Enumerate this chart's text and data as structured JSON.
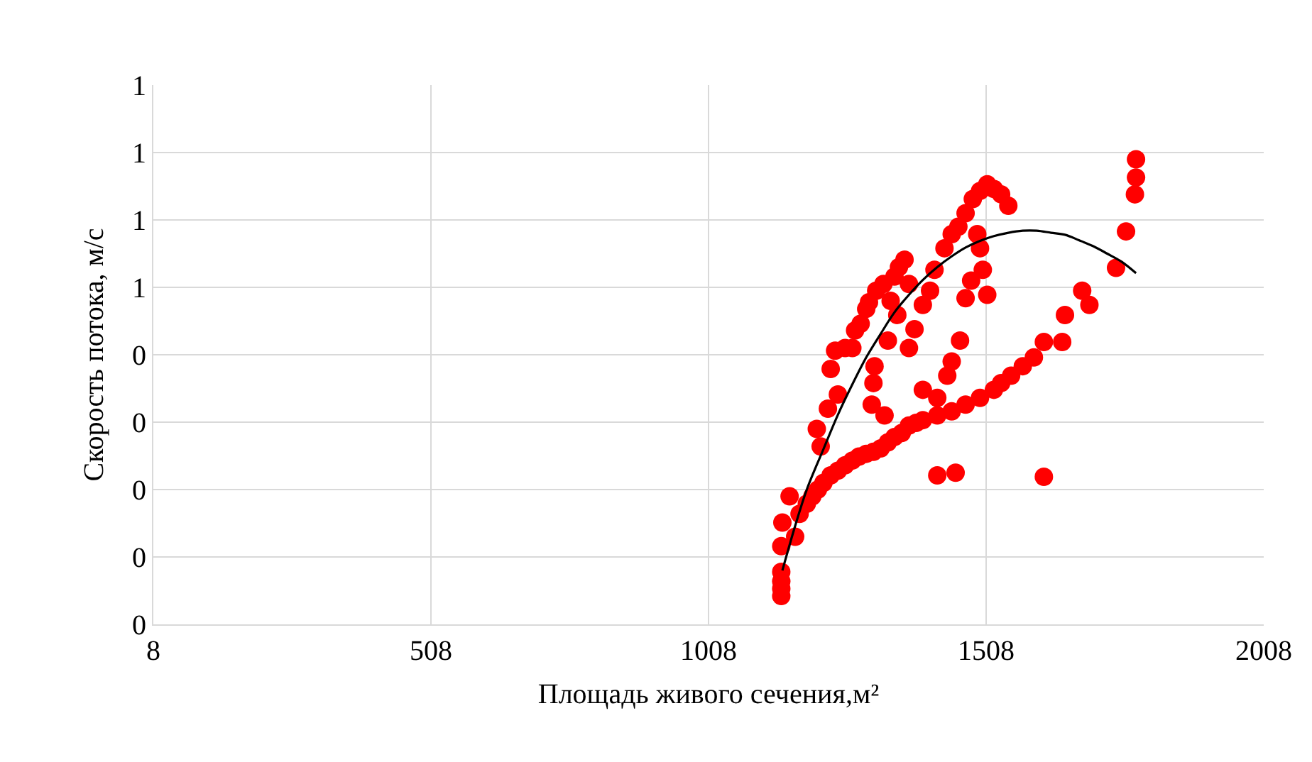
{
  "chart_data": {
    "type": "scatter",
    "xlabel": "Площадь живого сечения,м²",
    "ylabel": "Скорость потока, м/с",
    "xlim": [
      8,
      2008
    ],
    "xticks": [
      8,
      508,
      1008,
      1508,
      2008
    ],
    "ylim": [
      0,
      0.8
    ],
    "yticks": [
      {
        "value": 0,
        "label": "0"
      },
      {
        "value": 0.1,
        "label": "0"
      },
      {
        "value": 0.2,
        "label": "0"
      },
      {
        "value": 0.3,
        "label": "0"
      },
      {
        "value": 0.4,
        "label": "0"
      },
      {
        "value": 0.5,
        "label": "1"
      },
      {
        "value": 0.6,
        "label": "1"
      },
      {
        "value": 0.7,
        "label": "1"
      },
      {
        "value": 0.8,
        "label": "1"
      }
    ],
    "grid": true,
    "marker": "circle",
    "series": [
      {
        "color": "#ff0000",
        "x": [
          1139,
          1139,
          1139,
          1139,
          1139,
          1141,
          1154,
          1164,
          1172,
          1185,
          1195,
          1205,
          1215,
          1228,
          1241,
          1254,
          1267,
          1279,
          1292,
          1305,
          1318,
          1331,
          1343,
          1356,
          1369,
          1382,
          1394,
          1420,
          1446,
          1471,
          1497,
          1522,
          1535,
          1553,
          1574,
          1594,
          1612,
          1650,
          1681,
          1420,
          1453,
          1612,
          1203,
          1210,
          1223,
          1228,
          1241,
          1236,
          1254,
          1267,
          1272,
          1282,
          1292,
          1297,
          1310,
          1323,
          1336,
          1343,
          1351,
          1361,
          1369,
          1331,
          1305,
          1302,
          1325,
          1307,
          1348,
          1369,
          1379,
          1394,
          1407,
          1415,
          1433,
          1446,
          1458,
          1471,
          1484,
          1497,
          1510,
          1522,
          1535,
          1548,
          1481,
          1471,
          1461,
          1446,
          1438,
          1420,
          1394,
          1492,
          1497,
          1502,
          1510,
          1778,
          1778,
          1776,
          1760,
          1742,
          1694,
          1645
        ],
        "values": [
          0.042,
          0.053,
          0.064,
          0.078,
          0.116,
          0.151,
          0.19,
          0.13,
          0.164,
          0.179,
          0.19,
          0.2,
          0.21,
          0.221,
          0.228,
          0.236,
          0.243,
          0.249,
          0.253,
          0.256,
          0.261,
          0.27,
          0.278,
          0.284,
          0.295,
          0.299,
          0.303,
          0.31,
          0.316,
          0.326,
          0.336,
          0.348,
          0.358,
          0.369,
          0.383,
          0.396,
          0.419,
          0.459,
          0.495,
          0.221,
          0.225,
          0.219,
          0.29,
          0.264,
          0.32,
          0.379,
          0.341,
          0.406,
          0.41,
          0.41,
          0.436,
          0.446,
          0.468,
          0.478,
          0.495,
          0.505,
          0.48,
          0.516,
          0.53,
          0.541,
          0.505,
          0.421,
          0.358,
          0.326,
          0.31,
          0.383,
          0.459,
          0.41,
          0.438,
          0.474,
          0.495,
          0.526,
          0.558,
          0.579,
          0.59,
          0.61,
          0.631,
          0.643,
          0.653,
          0.646,
          0.638,
          0.621,
          0.51,
          0.484,
          0.421,
          0.39,
          0.369,
          0.336,
          0.348,
          0.579,
          0.558,
          0.526,
          0.489,
          0.69,
          0.663,
          0.638,
          0.583,
          0.529,
          0.474,
          0.419
        ]
      },
      {
        "type": "line",
        "color": "#000000",
        "marker": "none",
        "x": [
          1141,
          1164,
          1185,
          1215,
          1241,
          1267,
          1292,
          1318,
          1343,
          1369,
          1394,
          1420,
          1446,
          1471,
          1497,
          1522,
          1548,
          1574,
          1599,
          1625,
          1650,
          1675,
          1701,
          1726,
          1752,
          1778
        ],
        "values": [
          0.08,
          0.146,
          0.2,
          0.26,
          0.311,
          0.356,
          0.396,
          0.431,
          0.463,
          0.489,
          0.511,
          0.53,
          0.546,
          0.559,
          0.569,
          0.576,
          0.581,
          0.584,
          0.584,
          0.581,
          0.578,
          0.57,
          0.561,
          0.55,
          0.538,
          0.521
        ]
      }
    ]
  }
}
